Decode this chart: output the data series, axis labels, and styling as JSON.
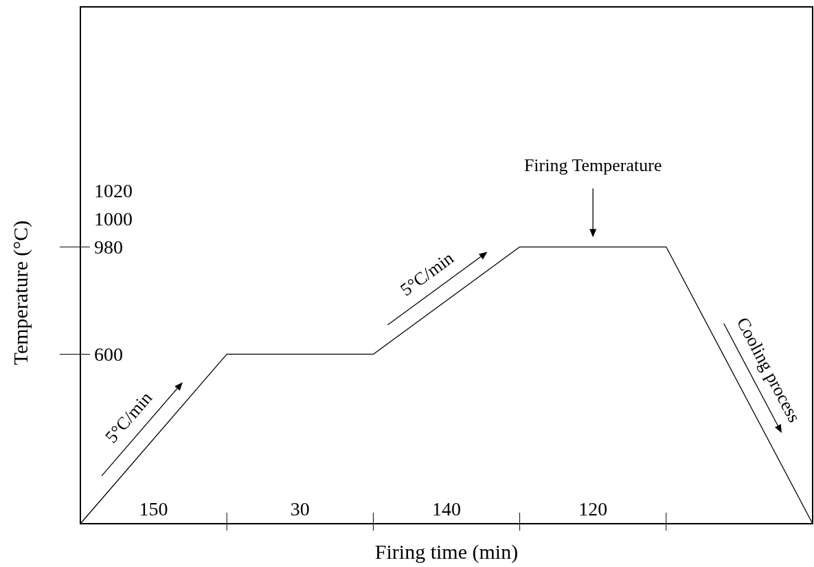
{
  "chart_data": {
    "type": "line",
    "xlabel": "Firing time (min)",
    "ylabel": "Temperature (°C)",
    "categories": [
      null,
      null,
      null,
      null,
      null,
      null
    ],
    "values": [
      0,
      600,
      600,
      980,
      980,
      0
    ],
    "color": "#000000",
    "ylim": [
      0,
      1830
    ],
    "yticks": [
      600,
      980
    ],
    "annotations": [
      "150",
      "30",
      "140",
      "120",
      "1020\n1000",
      "5°C/min",
      "5°C/min",
      "Firing Temperature",
      "Cooling process"
    ],
    "grid": false,
    "marker": "none",
    "line_style": "solid"
  }
}
